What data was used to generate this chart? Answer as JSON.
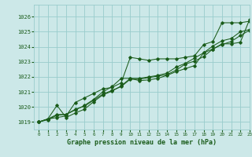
{
  "title": "Graphe pression niveau de la mer (hPa)",
  "bg_color": "#cce8e8",
  "grid_color": "#99cccc",
  "line_color": "#1a5c1a",
  "xlim": [
    -0.5,
    23
  ],
  "ylim": [
    1018.5,
    1026.8
  ],
  "yticks": [
    1019,
    1020,
    1021,
    1022,
    1023,
    1024,
    1025,
    1026
  ],
  "xticks": [
    0,
    1,
    2,
    3,
    4,
    5,
    6,
    7,
    8,
    9,
    10,
    11,
    12,
    13,
    14,
    15,
    16,
    17,
    18,
    19,
    20,
    21,
    22,
    23
  ],
  "series": [
    [
      1019.0,
      1019.2,
      1019.3,
      1019.4,
      1020.3,
      1020.6,
      1020.9,
      1021.2,
      1021.3,
      1021.6,
      1023.3,
      1023.2,
      1023.1,
      1023.2,
      1023.2,
      1023.2,
      1023.3,
      1023.4,
      1024.15,
      1024.35,
      1025.6,
      1025.6,
      1025.6,
      1025.7
    ],
    [
      1019.0,
      1019.2,
      1019.5,
      1019.5,
      1019.8,
      1020.1,
      1020.5,
      1021.0,
      1021.35,
      1021.9,
      1021.9,
      1021.75,
      1021.8,
      1021.9,
      1022.1,
      1022.35,
      1022.55,
      1022.75,
      1023.6,
      1023.85,
      1024.2,
      1024.2,
      1024.3,
      1025.8
    ],
    [
      1019.0,
      1019.2,
      1020.1,
      1019.3,
      1019.6,
      1019.85,
      1020.35,
      1020.8,
      1021.05,
      1021.4,
      1021.9,
      1021.9,
      1022.0,
      1022.1,
      1022.25,
      1022.65,
      1022.9,
      1023.25,
      1023.6,
      1024.05,
      1024.4,
      1024.55,
      1025.0,
      1025.15
    ],
    [
      1019.0,
      1019.15,
      1019.45,
      1019.5,
      1019.85,
      1020.05,
      1020.45,
      1020.85,
      1021.1,
      1021.35,
      1021.85,
      1021.85,
      1021.95,
      1022.05,
      1022.15,
      1022.45,
      1022.85,
      1023.05,
      1023.35,
      1023.85,
      1024.15,
      1024.35,
      1024.75,
      1025.1
    ]
  ]
}
